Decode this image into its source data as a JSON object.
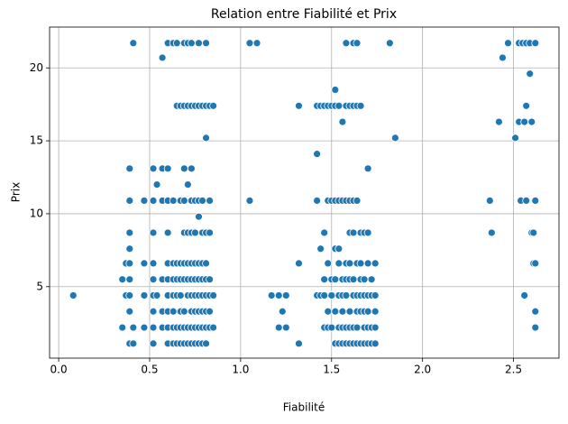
{
  "chart_data": {
    "type": "scatter",
    "title": "Relation entre Fiabilité et Prix",
    "xlabel": "Fiabilité",
    "ylabel": "Prix",
    "color": "#1f77b4",
    "grid": true,
    "xlim": [
      -0.05,
      2.75
    ],
    "xticks": [
      {
        "value": 0,
        "label": "0.0"
      },
      0.5,
      {
        "value": 1,
        "label": "1.0"
      },
      1.5,
      {
        "value": 2,
        "label": "2.0"
      },
      2.5
    ],
    "ylim": [
      0.1,
      22.8
    ],
    "yticks": [
      5,
      10,
      15,
      20
    ],
    "x": [
      0.08,
      0.35,
      0.35,
      0.37,
      0.37,
      0.39,
      0.39,
      0.39,
      0.39,
      0.39,
      0.39,
      0.39,
      0.39,
      0.39,
      0.41,
      0.41,
      0.41,
      0.47,
      0.47,
      0.47,
      0.47,
      0.52,
      0.52,
      0.52,
      0.52,
      0.52,
      0.52,
      0.52,
      0.52,
      0.52,
      0.54,
      0.54,
      0.57,
      0.57,
      0.57,
      0.57,
      0.57,
      0.57,
      0.6,
      0.6,
      0.6,
      0.6,
      0.6,
      0.6,
      0.6,
      0.6,
      0.6,
      0.6,
      0.63,
      0.63,
      0.63,
      0.63,
      0.63,
      0.63,
      0.63,
      0.63,
      0.65,
      0.65,
      0.65,
      0.65,
      0.65,
      0.65,
      0.65,
      0.67,
      0.67,
      0.67,
      0.67,
      0.67,
      0.67,
      0.67,
      0.67,
      0.69,
      0.69,
      0.69,
      0.69,
      0.69,
      0.69,
      0.69,
      0.69,
      0.69,
      0.69,
      0.71,
      0.71,
      0.71,
      0.71,
      0.71,
      0.71,
      0.71,
      0.71,
      0.71,
      0.73,
      0.73,
      0.73,
      0.73,
      0.73,
      0.73,
      0.73,
      0.73,
      0.73,
      0.73,
      0.73,
      0.75,
      0.75,
      0.75,
      0.75,
      0.75,
      0.75,
      0.75,
      0.75,
      0.75,
      0.77,
      0.77,
      0.77,
      0.77,
      0.77,
      0.77,
      0.77,
      0.77,
      0.77,
      0.77,
      0.79,
      0.79,
      0.79,
      0.79,
      0.79,
      0.79,
      0.79,
      0.79,
      0.79,
      0.81,
      0.81,
      0.81,
      0.81,
      0.81,
      0.81,
      0.81,
      0.81,
      0.81,
      0.81,
      0.83,
      0.83,
      0.83,
      0.83,
      0.83,
      0.83,
      0.83,
      0.85,
      0.85,
      0.85,
      1.05,
      1.05,
      1.09,
      1.17,
      1.21,
      1.21,
      1.23,
      1.25,
      1.25,
      1.32,
      1.32,
      1.32,
      1.42,
      1.42,
      1.42,
      1.42,
      1.44,
      1.44,
      1.44,
      1.46,
      1.46,
      1.46,
      1.46,
      1.46,
      1.48,
      1.48,
      1.48,
      1.48,
      1.48,
      1.5,
      1.5,
      1.5,
      1.5,
      1.5,
      1.52,
      1.52,
      1.52,
      1.52,
      1.52,
      1.52,
      1.52,
      1.54,
      1.54,
      1.54,
      1.54,
      1.54,
      1.54,
      1.54,
      1.56,
      1.56,
      1.56,
      1.56,
      1.56,
      1.56,
      1.56,
      1.58,
      1.58,
      1.58,
      1.58,
      1.58,
      1.58,
      1.58,
      1.58,
      1.6,
      1.6,
      1.6,
      1.6,
      1.6,
      1.6,
      1.6,
      1.6,
      1.62,
      1.62,
      1.62,
      1.62,
      1.62,
      1.62,
      1.62,
      1.62,
      1.64,
      1.64,
      1.64,
      1.64,
      1.64,
      1.64,
      1.64,
      1.64,
      1.66,
      1.66,
      1.66,
      1.66,
      1.66,
      1.66,
      1.66,
      1.68,
      1.68,
      1.68,
      1.68,
      1.68,
      1.68,
      1.7,
      1.7,
      1.7,
      1.7,
      1.7,
      1.7,
      1.7,
      1.72,
      1.72,
      1.72,
      1.72,
      1.74,
      1.74,
      1.74,
      1.74,
      1.74,
      1.82,
      1.85,
      2.37,
      2.38,
      2.42,
      2.44,
      2.47,
      2.51,
      2.53,
      2.53,
      2.54,
      2.55,
      2.56,
      2.56,
      2.57,
      2.57,
      2.57,
      2.59,
      2.59,
      2.6,
      2.6,
      2.61,
      2.61,
      2.62,
      2.62,
      2.62,
      2.62,
      2.62
    ],
    "values": [
      4.4,
      2.2,
      5.5,
      4.4,
      6.6,
      1.1,
      3.3,
      4.4,
      5.5,
      6.6,
      7.6,
      8.7,
      10.9,
      13.1,
      1.1,
      2.2,
      21.7,
      2.2,
      4.4,
      6.6,
      10.9,
      1.1,
      2.2,
      3.3,
      4.4,
      5.5,
      6.6,
      8.7,
      10.9,
      13.1,
      4.4,
      12.0,
      2.2,
      3.3,
      5.5,
      10.9,
      13.1,
      20.7,
      1.1,
      2.2,
      3.3,
      4.4,
      5.5,
      6.6,
      8.7,
      10.9,
      13.1,
      21.7,
      1.1,
      2.2,
      3.3,
      4.4,
      5.5,
      6.6,
      10.9,
      21.7,
      1.1,
      2.2,
      4.4,
      5.5,
      6.6,
      17.4,
      21.7,
      1.1,
      2.2,
      3.3,
      4.4,
      5.5,
      6.6,
      10.9,
      17.4,
      1.1,
      2.2,
      3.3,
      5.5,
      6.6,
      8.7,
      10.9,
      13.1,
      17.4,
      21.7,
      1.1,
      2.2,
      4.4,
      5.5,
      6.6,
      8.7,
      12.0,
      17.4,
      21.7,
      1.1,
      2.2,
      3.3,
      4.4,
      5.5,
      6.6,
      8.7,
      10.9,
      13.1,
      17.4,
      21.7,
      1.1,
      2.2,
      3.3,
      4.4,
      5.5,
      6.6,
      8.7,
      10.9,
      17.4,
      1.1,
      2.2,
      3.3,
      4.4,
      5.5,
      6.6,
      9.8,
      10.9,
      17.4,
      21.7,
      1.1,
      2.2,
      3.3,
      4.4,
      5.5,
      6.6,
      8.7,
      10.9,
      17.4,
      1.1,
      2.2,
      3.3,
      4.4,
      5.5,
      6.6,
      8.7,
      15.2,
      17.4,
      21.7,
      2.2,
      3.3,
      4.4,
      5.5,
      8.7,
      10.9,
      17.4,
      2.2,
      4.4,
      17.4,
      10.9,
      21.7,
      21.7,
      4.4,
      2.2,
      4.4,
      3.3,
      2.2,
      4.4,
      1.1,
      6.6,
      17.4,
      4.4,
      10.9,
      14.1,
      17.4,
      4.4,
      7.6,
      17.4,
      2.2,
      4.4,
      5.5,
      8.7,
      17.4,
      2.2,
      3.3,
      6.6,
      10.9,
      17.4,
      2.2,
      4.4,
      5.5,
      10.9,
      17.4,
      1.1,
      3.3,
      5.5,
      7.6,
      10.9,
      17.4,
      18.5,
      1.1,
      2.2,
      4.4,
      6.6,
      7.6,
      10.9,
      17.4,
      1.1,
      2.2,
      3.3,
      4.4,
      5.5,
      10.9,
      16.3,
      1.1,
      2.2,
      4.4,
      5.5,
      6.6,
      10.9,
      17.4,
      21.7,
      1.1,
      2.2,
      3.3,
      5.5,
      6.6,
      8.7,
      10.9,
      17.4,
      1.1,
      2.2,
      4.4,
      5.5,
      8.7,
      10.9,
      17.4,
      21.7,
      1.1,
      2.2,
      3.3,
      4.4,
      6.6,
      10.9,
      17.4,
      21.7,
      1.1,
      3.3,
      4.4,
      5.5,
      6.6,
      8.7,
      17.4,
      1.1,
      2.2,
      3.3,
      4.4,
      5.5,
      8.7,
      1.1,
      2.2,
      3.3,
      4.4,
      6.6,
      8.7,
      13.1,
      1.1,
      2.2,
      4.4,
      5.5,
      1.1,
      2.2,
      3.3,
      4.4,
      6.6,
      21.7,
      15.2,
      10.9,
      8.7,
      16.3,
      20.7,
      21.7,
      15.2,
      16.3,
      21.7,
      10.9,
      21.7,
      4.4,
      16.3,
      10.9,
      17.4,
      21.7,
      19.6,
      21.7,
      8.7,
      16.3,
      6.6,
      8.7,
      2.2,
      3.3,
      6.6,
      10.9,
      21.7
    ]
  }
}
